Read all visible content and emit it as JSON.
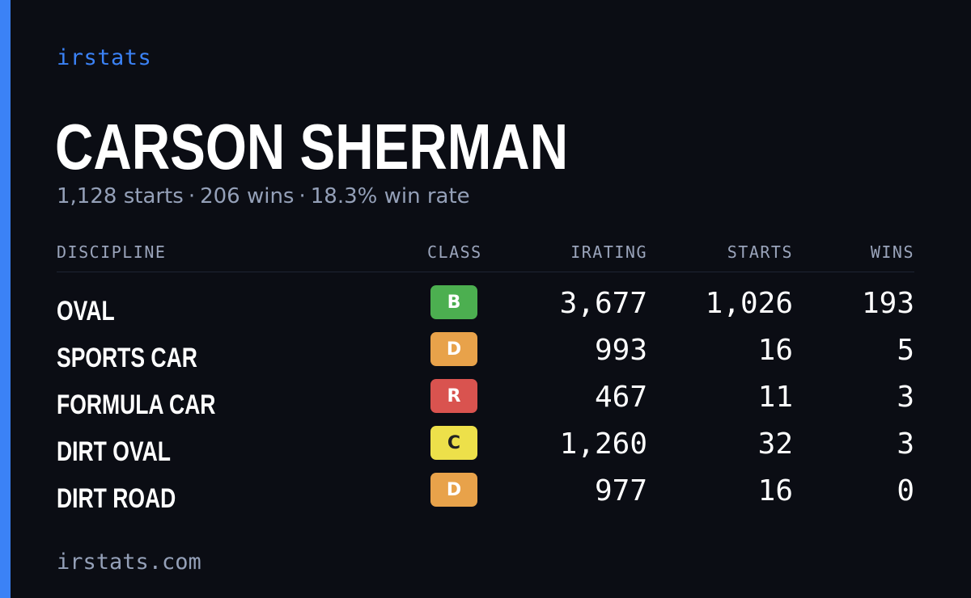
{
  "brand": "irstats",
  "player": {
    "name": "CARSON SHERMAN",
    "starts": "1,128 starts",
    "wins": "206 wins",
    "win_rate": "18.3% win rate",
    "separator": "·"
  },
  "table": {
    "headers": {
      "discipline": "DISCIPLINE",
      "class": "CLASS",
      "irating": "IRATING",
      "starts": "STARTS",
      "wins": "WINS"
    },
    "rows": [
      {
        "discipline": "OVAL",
        "class": "B",
        "class_color": "#4caf50",
        "class_text_color": "#ffffff",
        "irating": "3,677",
        "starts": "1,026",
        "wins": "193"
      },
      {
        "discipline": "SPORTS CAR",
        "class": "D",
        "class_color": "#e8a24a",
        "class_text_color": "#ffffff",
        "irating": "993",
        "starts": "16",
        "wins": "5"
      },
      {
        "discipline": "FORMULA CAR",
        "class": "R",
        "class_color": "#d9534f",
        "class_text_color": "#ffffff",
        "irating": "467",
        "starts": "11",
        "wins": "3"
      },
      {
        "discipline": "DIRT OVAL",
        "class": "C",
        "class_color": "#ede04a",
        "class_text_color": "#222222",
        "irating": "1,260",
        "starts": "32",
        "wins": "3"
      },
      {
        "discipline": "DIRT ROAD",
        "class": "D",
        "class_color": "#e8a24a",
        "class_text_color": "#ffffff",
        "irating": "977",
        "starts": "16",
        "wins": "0"
      }
    ]
  },
  "footer": "irstats.com",
  "colors": {
    "background": "#0b0d14",
    "accent": "#3b82f6",
    "muted_text": "#94a0b8"
  }
}
